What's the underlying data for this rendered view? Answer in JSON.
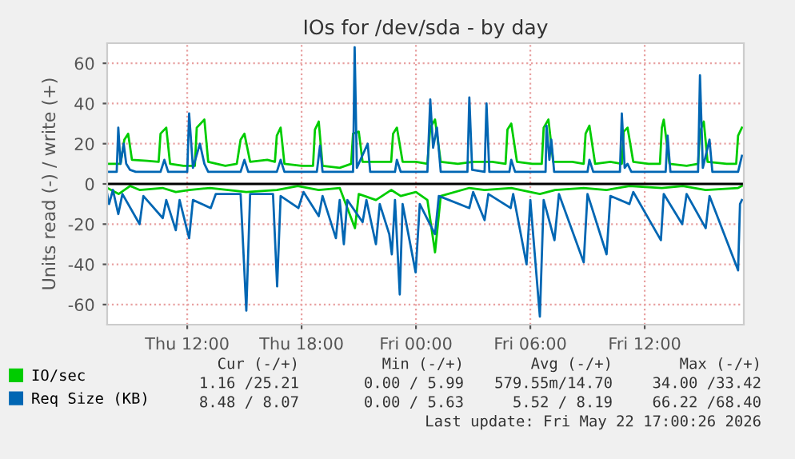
{
  "chart_data": {
    "type": "line",
    "title": "IOs for /dev/sda - by day",
    "ylabel": "Units read (-) / write (+)",
    "xlim": [
      "2026-05-21T07:48",
      "2026-05-22T17:12"
    ],
    "ylim": [
      -70,
      70
    ],
    "xticks": [
      {
        "value": "2026-05-21T12:00",
        "label": "Thu 12:00"
      },
      {
        "value": "2026-05-21T18:00",
        "label": "Thu 18:00"
      },
      {
        "value": "2026-05-22T00:00",
        "label": "Fri 00:00"
      },
      {
        "value": "2026-05-22T06:00",
        "label": "Fri 06:00"
      },
      {
        "value": "2026-05-22T12:00",
        "label": "Fri 12:00"
      }
    ],
    "yticks": [
      -60,
      -40,
      -20,
      0,
      20,
      40,
      60
    ],
    "grid": true,
    "legend": "bottom left",
    "marker": "none",
    "line_style": "solid",
    "ref_lines": [
      {
        "axis": "y",
        "value": 0,
        "color": "#000000"
      }
    ],
    "series": [
      {
        "name": "IO/sec",
        "color": "#00cc00",
        "x": [
          "2026-05-21T07:48",
          "2026-05-21T08:30",
          "2026-05-21T08:42",
          "2026-05-21T08:54",
          "2026-05-21T09:06",
          "2026-05-21T09:54",
          "2026-05-21T10:30",
          "2026-05-21T10:36",
          "2026-05-21T10:54",
          "2026-05-21T11:06",
          "2026-05-21T11:48",
          "2026-05-21T12:24",
          "2026-05-21T12:30",
          "2026-05-21T12:54",
          "2026-05-21T13:06",
          "2026-05-21T14:00",
          "2026-05-21T14:36",
          "2026-05-21T14:48",
          "2026-05-21T15:00",
          "2026-05-21T15:18",
          "2026-05-21T16:12",
          "2026-05-21T16:36",
          "2026-05-21T16:42",
          "2026-05-21T16:54",
          "2026-05-21T17:06",
          "2026-05-21T18:00",
          "2026-05-21T18:36",
          "2026-05-21T18:42",
          "2026-05-21T18:54",
          "2026-05-21T19:06",
          "2026-05-21T20:00",
          "2026-05-21T20:36",
          "2026-05-21T20:42",
          "2026-05-21T21:00",
          "2026-05-21T21:12",
          "2026-05-21T22:12",
          "2026-05-21T22:42",
          "2026-05-21T22:48",
          "2026-05-21T23:00",
          "2026-05-21T23:18",
          "2026-05-22T00:00",
          "2026-05-22T00:36",
          "2026-05-22T00:45",
          "2026-05-22T01:00",
          "2026-05-22T01:18",
          "2026-05-22T02:12",
          "2026-05-22T03:00",
          "2026-05-22T04:00",
          "2026-05-22T04:42",
          "2026-05-22T04:48",
          "2026-05-22T05:00",
          "2026-05-22T05:18",
          "2026-05-22T06:06",
          "2026-05-22T06:36",
          "2026-05-22T06:42",
          "2026-05-22T06:57",
          "2026-05-22T07:12",
          "2026-05-22T08:12",
          "2026-05-22T08:48",
          "2026-05-22T08:54",
          "2026-05-22T09:06",
          "2026-05-22T09:24",
          "2026-05-22T10:12",
          "2026-05-22T10:48",
          "2026-05-22T10:54",
          "2026-05-22T11:06",
          "2026-05-22T11:24",
          "2026-05-22T12:12",
          "2026-05-22T12:48",
          "2026-05-22T12:54",
          "2026-05-22T13:00",
          "2026-05-22T13:18",
          "2026-05-22T14:12",
          "2026-05-22T14:48",
          "2026-05-22T14:54",
          "2026-05-22T15:06",
          "2026-05-22T15:18",
          "2026-05-22T16:18",
          "2026-05-22T16:48",
          "2026-05-22T16:54",
          "2026-05-22T17:06"
        ],
        "values": [
          10,
          10,
          22,
          25,
          12,
          11.5,
          11,
          25,
          28,
          10,
          9,
          9,
          28,
          32,
          11,
          9,
          10,
          22,
          25,
          11,
          12,
          11,
          24,
          28,
          10,
          9,
          9,
          27,
          31,
          9,
          8,
          10,
          25,
          26,
          11,
          11,
          11,
          25,
          28,
          11,
          11,
          10,
          28,
          32,
          11,
          10,
          11,
          11,
          10,
          27,
          30,
          11,
          10,
          10,
          28,
          32,
          11,
          11,
          10,
          25,
          29,
          10,
          11,
          10,
          26,
          28,
          11,
          10,
          10,
          28,
          32,
          10,
          9,
          10,
          26,
          31,
          11,
          10,
          10,
          24,
          28
        ]
      },
      {
        "color": "#00cc00",
        "x": [
          "2026-05-21T07:48",
          "2026-05-21T08:24",
          "2026-05-21T09:00",
          "2026-05-21T09:30",
          "2026-05-21T10:42",
          "2026-05-21T11:24",
          "2026-05-21T12:06",
          "2026-05-21T13:12",
          "2026-05-21T15:06",
          "2026-05-21T16:42",
          "2026-05-21T17:48",
          "2026-05-21T18:54",
          "2026-05-21T20:00",
          "2026-05-21T20:48",
          "2026-05-21T21:00",
          "2026-05-21T21:54",
          "2026-05-21T22:42",
          "2026-05-21T23:12",
          "2026-05-22T00:00",
          "2026-05-22T00:36",
          "2026-05-22T01:00",
          "2026-05-22T01:18",
          "2026-05-22T02:48",
          "2026-05-22T03:36",
          "2026-05-22T05:00",
          "2026-05-22T06:30",
          "2026-05-22T07:18",
          "2026-05-22T08:48",
          "2026-05-22T10:00",
          "2026-05-22T11:12",
          "2026-05-22T12:54",
          "2026-05-22T14:00",
          "2026-05-22T15:12",
          "2026-05-22T16:54",
          "2026-05-22T17:06"
        ],
        "values": [
          -2,
          -5,
          -1,
          -3,
          -2,
          -4,
          -3,
          -2,
          -4,
          -3,
          -1,
          -3,
          -2,
          -22,
          -5,
          -8,
          -3,
          -6,
          -4,
          -8,
          -34,
          -6,
          -2,
          -3,
          -2,
          -5,
          -3,
          -2,
          -3,
          -1,
          -2,
          -1,
          -3,
          -2,
          -1
        ]
      },
      {
        "name": "Req Size (KB)",
        "color": "#0066b3",
        "x": [
          "2026-05-21T07:48",
          "2026-05-21T08:18",
          "2026-05-21T08:23",
          "2026-05-21T08:30",
          "2026-05-21T08:40",
          "2026-05-21T08:48",
          "2026-05-21T09:00",
          "2026-05-21T09:18",
          "2026-05-21T10:36",
          "2026-05-21T10:48",
          "2026-05-21T11:00",
          "2026-05-21T12:00",
          "2026-05-21T12:06",
          "2026-05-21T12:18",
          "2026-05-21T12:40",
          "2026-05-21T12:54",
          "2026-05-21T13:06",
          "2026-05-21T14:48",
          "2026-05-21T15:00",
          "2026-05-21T15:12",
          "2026-05-21T16:42",
          "2026-05-21T16:54",
          "2026-05-21T17:06",
          "2026-05-21T18:48",
          "2026-05-21T18:58",
          "2026-05-21T19:06",
          "2026-05-21T20:42",
          "2026-05-21T20:47",
          "2026-05-21T20:54",
          "2026-05-21T21:28",
          "2026-05-21T21:36",
          "2026-05-21T22:54",
          "2026-05-21T23:00",
          "2026-05-21T23:12",
          "2026-05-22T00:36",
          "2026-05-22T00:45",
          "2026-05-22T00:54",
          "2026-05-22T01:06",
          "2026-05-22T01:18",
          "2026-05-22T02:42",
          "2026-05-22T02:48",
          "2026-05-22T02:57",
          "2026-05-22T03:36",
          "2026-05-22T03:42",
          "2026-05-22T03:51",
          "2026-05-22T04:54",
          "2026-05-22T05:00",
          "2026-05-22T05:12",
          "2026-05-22T06:48",
          "2026-05-22T06:51",
          "2026-05-22T07:00",
          "2026-05-22T07:06",
          "2026-05-22T07:15",
          "2026-05-22T09:00",
          "2026-05-22T09:06",
          "2026-05-22T09:18",
          "2026-05-22T10:42",
          "2026-05-22T10:48",
          "2026-05-22T10:57",
          "2026-05-22T11:06",
          "2026-05-22T11:18",
          "2026-05-22T13:06",
          "2026-05-22T13:12",
          "2026-05-22T13:21",
          "2026-05-22T14:48",
          "2026-05-22T14:54",
          "2026-05-22T15:03",
          "2026-05-22T15:24",
          "2026-05-22T15:33",
          "2026-05-22T16:54",
          "2026-05-22T17:06"
        ],
        "values": [
          6,
          6,
          28,
          10,
          20,
          10,
          7,
          6,
          6,
          12,
          6,
          6,
          35,
          8,
          20,
          10,
          6,
          6,
          12,
          6,
          6,
          12,
          6,
          6,
          19,
          6,
          6,
          68,
          8,
          20,
          6,
          6,
          12,
          6,
          6,
          42,
          18,
          28,
          6,
          6,
          43,
          7,
          6,
          40,
          6,
          6,
          12,
          6,
          6,
          29,
          12,
          22,
          6,
          6,
          12,
          6,
          6,
          35,
          8,
          10,
          6,
          6,
          24,
          6,
          6,
          54,
          8,
          22,
          6,
          6,
          14
        ]
      },
      {
        "color": "#0066b3",
        "x": [
          "2026-05-21T07:48",
          "2026-05-21T07:54",
          "2026-05-21T08:06",
          "2026-05-21T08:23",
          "2026-05-21T08:36",
          "2026-05-21T09:30",
          "2026-05-21T09:42",
          "2026-05-21T10:43",
          "2026-05-21T10:54",
          "2026-05-21T11:24",
          "2026-05-21T11:36",
          "2026-05-21T12:06",
          "2026-05-21T12:18",
          "2026-05-21T13:14",
          "2026-05-21T13:30",
          "2026-05-21T14:48",
          "2026-05-21T15:06",
          "2026-05-21T15:18",
          "2026-05-21T16:30",
          "2026-05-21T16:43",
          "2026-05-21T16:54",
          "2026-05-21T17:50",
          "2026-05-21T18:06",
          "2026-05-21T18:54",
          "2026-05-21T19:06",
          "2026-05-21T19:48",
          "2026-05-21T20:00",
          "2026-05-21T20:13",
          "2026-05-21T20:24",
          "2026-05-21T21:12",
          "2026-05-21T21:24",
          "2026-05-21T21:54",
          "2026-05-21T22:06",
          "2026-05-21T22:36",
          "2026-05-21T22:44",
          "2026-05-21T22:54",
          "2026-05-21T23:09",
          "2026-05-21T23:18",
          "2026-05-21T23:59",
          "2026-05-22T00:12",
          "2026-05-22T01:00",
          "2026-05-22T01:12",
          "2026-05-22T02:48",
          "2026-05-22T03:00",
          "2026-05-22T03:36",
          "2026-05-22T03:48",
          "2026-05-22T04:58",
          "2026-05-22T05:06",
          "2026-05-22T05:48",
          "2026-05-22T06:00",
          "2026-05-22T06:30",
          "2026-05-22T06:42",
          "2026-05-22T07:16",
          "2026-05-22T07:30",
          "2026-05-22T08:48",
          "2026-05-22T09:00",
          "2026-05-22T10:00",
          "2026-05-22T10:12",
          "2026-05-22T11:12",
          "2026-05-22T11:24",
          "2026-05-22T12:51",
          "2026-05-22T13:00",
          "2026-05-22T13:58",
          "2026-05-22T14:12",
          "2026-05-22T15:12",
          "2026-05-22T15:24",
          "2026-05-22T16:54",
          "2026-05-22T17:00",
          "2026-05-22T17:06"
        ],
        "values": [
          -5,
          -10,
          -3,
          -15,
          -5,
          -20,
          -6,
          -17,
          -8,
          -23,
          -8,
          -27,
          -8,
          -12,
          -5,
          -5,
          -63,
          -5,
          -5,
          -51,
          -6,
          -12,
          -4,
          -16,
          -6,
          -27,
          -8,
          -30,
          -8,
          -19,
          -8,
          -30,
          -10,
          -25,
          -35,
          -8,
          -55,
          -10,
          -44,
          -10,
          -25,
          -6,
          -12,
          -4,
          -18,
          -5,
          -12,
          -5,
          -40,
          -8,
          -66,
          -8,
          -28,
          -5,
          -39,
          -5,
          -35,
          -6,
          -10,
          -4,
          -28,
          -5,
          -20,
          -5,
          -22,
          -6,
          -43,
          -10,
          -8
        ]
      }
    ],
    "annotations": [
      "Cur (-/+)",
      "Min (-/+)",
      "Avg (-/+)",
      "Max (-/+)",
      "1.16 /25.21",
      "0.00 / 5.99",
      "579.55m/14.70",
      "34.00 /33.42",
      "8.48 / 8.07",
      "0.00 / 5.63",
      "5.52 / 8.19",
      "66.22 /68.40",
      "Last update: Fri May 22 17:00:26 2026"
    ]
  }
}
